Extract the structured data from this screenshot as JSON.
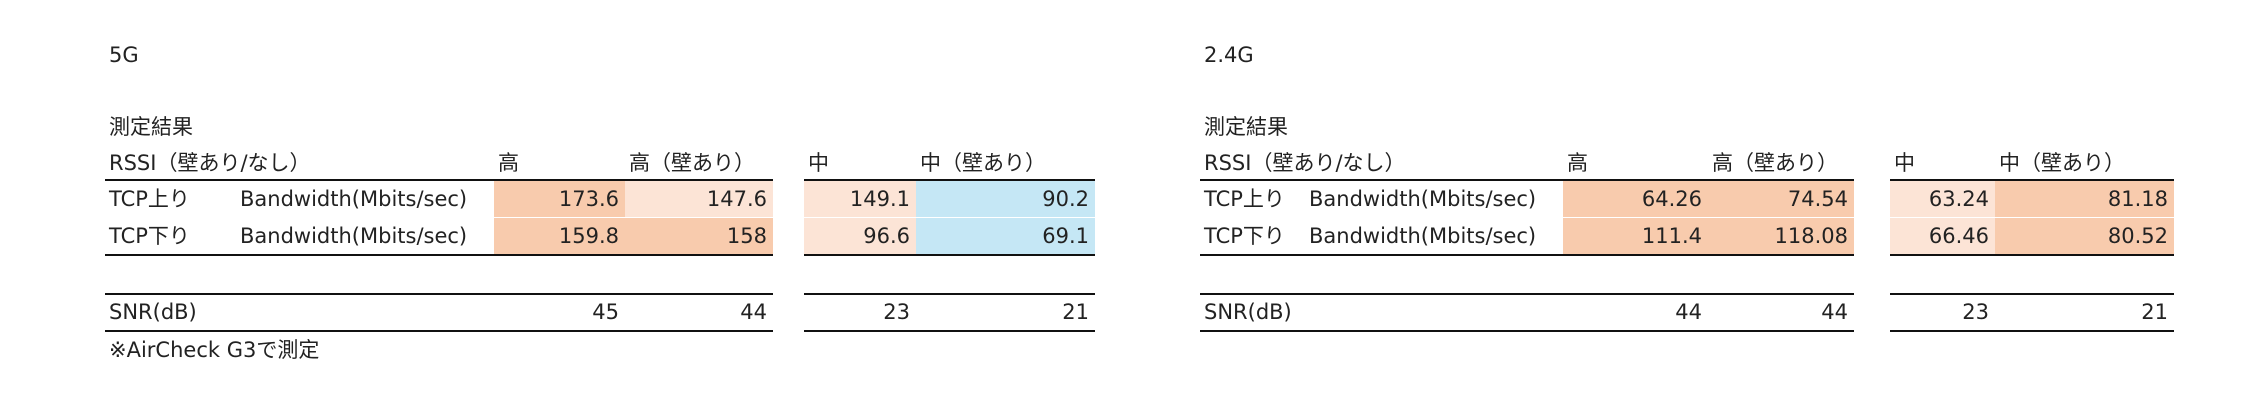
{
  "panels": [
    {
      "title": "5G",
      "caption": "測定結果",
      "header": [
        "RSSI（壁あり/なし）",
        "高",
        "高（壁あり）",
        "中",
        "中（壁あり）"
      ],
      "rows": [
        {
          "label": "TCP上り",
          "metric": "Bandwidth(Mbits/sec)",
          "values": [
            173.6,
            147.6,
            149.1,
            90.2
          ],
          "colors": [
            "#f8cbad",
            "#fce4d6",
            "#fce4d6",
            "#c5e7f5"
          ]
        },
        {
          "label": "TCP下り",
          "metric": "Bandwidth(Mbits/sec)",
          "values": [
            159.8,
            158,
            96.6,
            69.1
          ],
          "colors": [
            "#f8cbad",
            "#f8cbad",
            "#fce4d6",
            "#c5e7f5"
          ]
        }
      ],
      "snr": {
        "label": "SNR(dB)",
        "values": [
          45,
          44,
          23,
          21
        ]
      },
      "note": "※AirCheck G3で測定"
    },
    {
      "title": "2.4G",
      "caption": "測定結果",
      "header": [
        "RSSI（壁あり/なし）",
        "高",
        "高（壁あり）",
        "中",
        "中（壁あり）"
      ],
      "rows": [
        {
          "label": "TCP上り",
          "metric": "Bandwidth(Mbits/sec)",
          "values": [
            64.26,
            74.54,
            63.24,
            81.18
          ],
          "colors": [
            "#f8cbad",
            "#f8cbad",
            "#fce4d6",
            "#f8cbad"
          ]
        },
        {
          "label": "TCP下り",
          "metric": "Bandwidth(Mbits/sec)",
          "values": [
            111.4,
            118.08,
            66.46,
            80.52
          ],
          "colors": [
            "#f8cbad",
            "#f8cbad",
            "#fce4d6",
            "#f8cbad"
          ]
        }
      ],
      "snr": {
        "label": "SNR(dB)",
        "values": [
          44,
          44,
          23,
          21
        ]
      }
    }
  ]
}
